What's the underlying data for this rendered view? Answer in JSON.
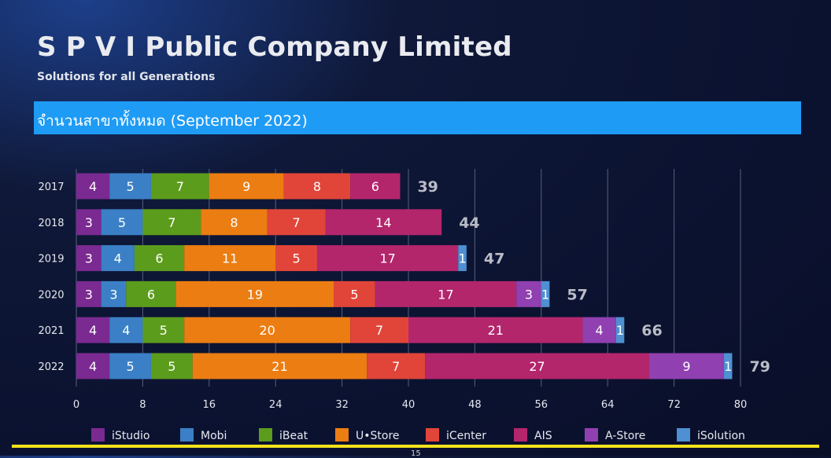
{
  "header": {
    "title": "S P V I Public Company Limited",
    "subtitle": "Solutions for all Generations"
  },
  "banner": {
    "text": "จำนวนสาขาทั้งหมด (September 2022)"
  },
  "page_number": "15",
  "chart_data": {
    "type": "bar",
    "orientation": "horizontal",
    "stacked": true,
    "title": "",
    "xlabel": "",
    "ylabel": "",
    "xlim": [
      0,
      80
    ],
    "x_ticks": [
      0,
      8,
      16,
      24,
      32,
      40,
      48,
      56,
      64,
      72,
      80
    ],
    "grid": "vertical",
    "legend_position": "bottom",
    "categories": [
      "2017",
      "2018",
      "2019",
      "2020",
      "2021",
      "2022"
    ],
    "totals": [
      39,
      44,
      47,
      57,
      66,
      79
    ],
    "series": [
      {
        "name": "iStudio",
        "color": "#7a2a90",
        "values": [
          4,
          3,
          3,
          3,
          4,
          4
        ]
      },
      {
        "name": "Mobi",
        "color": "#3b80c6",
        "values": [
          5,
          5,
          4,
          3,
          4,
          5
        ]
      },
      {
        "name": "iBeat",
        "color": "#5c9c1c",
        "values": [
          7,
          7,
          6,
          6,
          5,
          5
        ]
      },
      {
        "name": "U•Store",
        "color": "#ec7d12",
        "values": [
          9,
          8,
          11,
          19,
          20,
          21
        ]
      },
      {
        "name": "iCenter",
        "color": "#e1453a",
        "values": [
          8,
          7,
          5,
          5,
          7,
          7
        ]
      },
      {
        "name": "AIS",
        "color": "#b3266c",
        "values": [
          6,
          14,
          17,
          17,
          21,
          27
        ]
      },
      {
        "name": "A-Store",
        "color": "#9040b0",
        "values": [
          0,
          0,
          0,
          3,
          4,
          9
        ]
      },
      {
        "name": "iSolution",
        "color": "#4e90d2",
        "values": [
          0,
          0,
          1,
          1,
          1,
          1
        ]
      }
    ]
  }
}
